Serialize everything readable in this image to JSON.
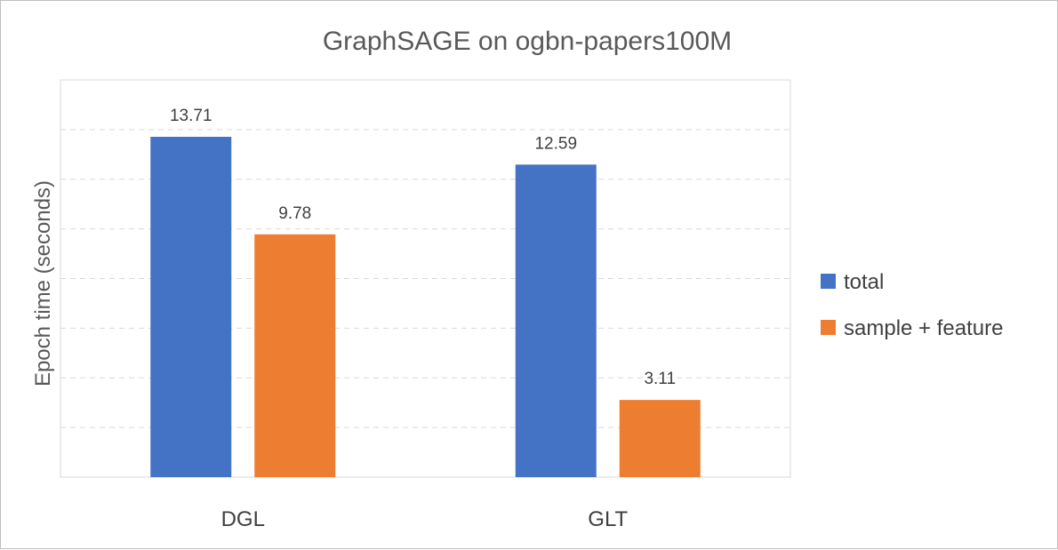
{
  "chart_data": {
    "type": "bar",
    "title": "GraphSAGE on ogbn-papers100M",
    "xlabel": "",
    "ylabel": "Epoch time (seconds)",
    "categories": [
      "DGL",
      "GLT"
    ],
    "series": [
      {
        "name": "total",
        "values": [
          13.71,
          12.59
        ],
        "color": "#4472C4"
      },
      {
        "name": "sample + feature",
        "values": [
          9.78,
          3.11
        ],
        "color": "#ED7D31"
      }
    ],
    "ylim": [
      0,
      16
    ],
    "y_ticks_shown": false,
    "grid": true,
    "grid_style": "dashed",
    "legend_position": "right"
  }
}
